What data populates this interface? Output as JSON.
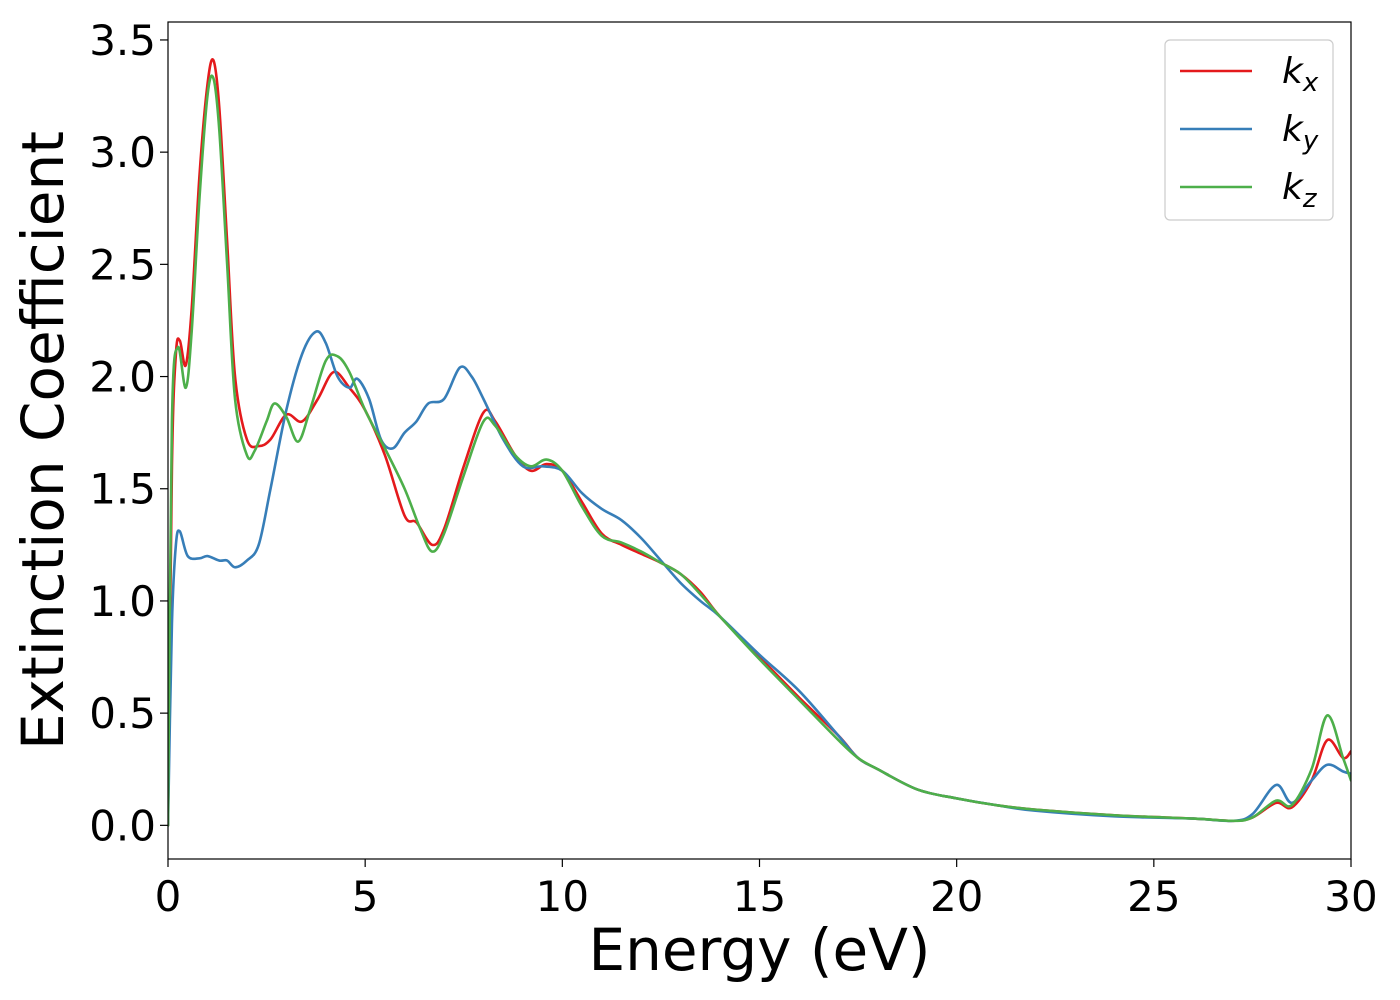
{
  "chart_data": {
    "type": "line",
    "title": "",
    "xlabel": "Energy (eV)",
    "ylabel": "Extinction Coefficient",
    "xlim": [
      0,
      30
    ],
    "ylim": [
      -0.15,
      3.58
    ],
    "xticks": [
      0,
      5,
      10,
      15,
      20,
      25,
      30
    ],
    "yticks": [
      0.0,
      0.5,
      1.0,
      1.5,
      2.0,
      2.5,
      3.0,
      3.5
    ],
    "xtick_labels": [
      "0",
      "5",
      "10",
      "15",
      "20",
      "25",
      "30"
    ],
    "ytick_labels": [
      "0.0",
      "0.5",
      "1.0",
      "1.5",
      "2.0",
      "2.5",
      "3.0",
      "3.5"
    ],
    "grid": false,
    "legend_position": "top-right",
    "series": [
      {
        "name": "k",
        "subscript": "x",
        "color": "#e41a1c",
        "points": [
          [
            0,
            0
          ],
          [
            0.1,
            1.6
          ],
          [
            0.2,
            2.1
          ],
          [
            0.3,
            2.16
          ],
          [
            0.45,
            2.05
          ],
          [
            0.6,
            2.3
          ],
          [
            0.8,
            2.9
          ],
          [
            1.0,
            3.3
          ],
          [
            1.15,
            3.41
          ],
          [
            1.3,
            3.2
          ],
          [
            1.5,
            2.6
          ],
          [
            1.7,
            2.0
          ],
          [
            2.0,
            1.72
          ],
          [
            2.3,
            1.69
          ],
          [
            2.6,
            1.72
          ],
          [
            3.0,
            1.83
          ],
          [
            3.4,
            1.8
          ],
          [
            3.8,
            1.9
          ],
          [
            4.2,
            2.02
          ],
          [
            4.6,
            1.95
          ],
          [
            5.0,
            1.85
          ],
          [
            5.5,
            1.65
          ],
          [
            6.0,
            1.38
          ],
          [
            6.3,
            1.35
          ],
          [
            6.7,
            1.25
          ],
          [
            7.0,
            1.32
          ],
          [
            7.5,
            1.6
          ],
          [
            8.0,
            1.84
          ],
          [
            8.3,
            1.8
          ],
          [
            8.8,
            1.65
          ],
          [
            9.2,
            1.58
          ],
          [
            9.6,
            1.61
          ],
          [
            10.0,
            1.58
          ],
          [
            10.5,
            1.44
          ],
          [
            11.0,
            1.3
          ],
          [
            11.5,
            1.25
          ],
          [
            12.0,
            1.21
          ],
          [
            12.5,
            1.17
          ],
          [
            13.0,
            1.12
          ],
          [
            13.5,
            1.04
          ],
          [
            14.0,
            0.93
          ],
          [
            15.0,
            0.75
          ],
          [
            16.0,
            0.57
          ],
          [
            17.0,
            0.4
          ],
          [
            17.5,
            0.3
          ],
          [
            18.0,
            0.25
          ],
          [
            19.0,
            0.16
          ],
          [
            20.0,
            0.12
          ],
          [
            21.0,
            0.09
          ],
          [
            22.0,
            0.07
          ],
          [
            24.0,
            0.045
          ],
          [
            26.0,
            0.03
          ],
          [
            27.0,
            0.02
          ],
          [
            27.5,
            0.035
          ],
          [
            28.1,
            0.1
          ],
          [
            28.5,
            0.08
          ],
          [
            29.0,
            0.2
          ],
          [
            29.4,
            0.38
          ],
          [
            29.8,
            0.3
          ],
          [
            30.0,
            0.33
          ]
        ]
      },
      {
        "name": "k",
        "subscript": "y",
        "color": "#377eb8",
        "points": [
          [
            0,
            0
          ],
          [
            0.1,
            0.9
          ],
          [
            0.2,
            1.25
          ],
          [
            0.3,
            1.31
          ],
          [
            0.5,
            1.2
          ],
          [
            0.8,
            1.19
          ],
          [
            1.0,
            1.2
          ],
          [
            1.3,
            1.18
          ],
          [
            1.5,
            1.18
          ],
          [
            1.7,
            1.15
          ],
          [
            2.0,
            1.18
          ],
          [
            2.3,
            1.25
          ],
          [
            2.6,
            1.5
          ],
          [
            3.0,
            1.85
          ],
          [
            3.4,
            2.1
          ],
          [
            3.75,
            2.2
          ],
          [
            4.0,
            2.15
          ],
          [
            4.3,
            2.0
          ],
          [
            4.6,
            1.95
          ],
          [
            4.8,
            1.99
          ],
          [
            5.1,
            1.9
          ],
          [
            5.4,
            1.72
          ],
          [
            5.7,
            1.68
          ],
          [
            6.0,
            1.75
          ],
          [
            6.3,
            1.8
          ],
          [
            6.6,
            1.88
          ],
          [
            7.0,
            1.9
          ],
          [
            7.4,
            2.04
          ],
          [
            7.7,
            2.0
          ],
          [
            8.0,
            1.9
          ],
          [
            8.5,
            1.72
          ],
          [
            9.0,
            1.6
          ],
          [
            9.5,
            1.6
          ],
          [
            10.0,
            1.58
          ],
          [
            10.5,
            1.48
          ],
          [
            11.0,
            1.41
          ],
          [
            11.5,
            1.36
          ],
          [
            12.0,
            1.28
          ],
          [
            12.5,
            1.18
          ],
          [
            13.0,
            1.08
          ],
          [
            13.5,
            1.0
          ],
          [
            14.0,
            0.93
          ],
          [
            15.0,
            0.76
          ],
          [
            16.0,
            0.6
          ],
          [
            17.0,
            0.4
          ],
          [
            17.5,
            0.3
          ],
          [
            18.0,
            0.25
          ],
          [
            19.0,
            0.16
          ],
          [
            20.0,
            0.12
          ],
          [
            21.0,
            0.09
          ],
          [
            22.0,
            0.065
          ],
          [
            24.0,
            0.04
          ],
          [
            26.0,
            0.03
          ],
          [
            27.0,
            0.02
          ],
          [
            27.5,
            0.05
          ],
          [
            28.1,
            0.18
          ],
          [
            28.5,
            0.1
          ],
          [
            29.0,
            0.2
          ],
          [
            29.4,
            0.27
          ],
          [
            29.8,
            0.24
          ],
          [
            30.0,
            0.23
          ]
        ]
      },
      {
        "name": "k",
        "subscript": "z",
        "color": "#4daf4a",
        "points": [
          [
            0,
            0
          ],
          [
            0.1,
            1.8
          ],
          [
            0.25,
            2.13
          ],
          [
            0.45,
            1.95
          ],
          [
            0.6,
            2.2
          ],
          [
            0.8,
            2.8
          ],
          [
            1.0,
            3.25
          ],
          [
            1.15,
            3.33
          ],
          [
            1.3,
            3.1
          ],
          [
            1.5,
            2.5
          ],
          [
            1.7,
            1.9
          ],
          [
            2.0,
            1.65
          ],
          [
            2.2,
            1.67
          ],
          [
            2.5,
            1.8
          ],
          [
            2.7,
            1.88
          ],
          [
            3.0,
            1.82
          ],
          [
            3.3,
            1.71
          ],
          [
            3.6,
            1.85
          ],
          [
            4.0,
            2.07
          ],
          [
            4.3,
            2.09
          ],
          [
            4.6,
            2.02
          ],
          [
            5.0,
            1.85
          ],
          [
            5.5,
            1.68
          ],
          [
            6.0,
            1.5
          ],
          [
            6.4,
            1.32
          ],
          [
            6.7,
            1.22
          ],
          [
            7.0,
            1.3
          ],
          [
            7.5,
            1.56
          ],
          [
            8.0,
            1.8
          ],
          [
            8.3,
            1.78
          ],
          [
            8.8,
            1.65
          ],
          [
            9.2,
            1.6
          ],
          [
            9.6,
            1.63
          ],
          [
            10.0,
            1.58
          ],
          [
            10.5,
            1.42
          ],
          [
            11.0,
            1.29
          ],
          [
            11.5,
            1.26
          ],
          [
            12.0,
            1.22
          ],
          [
            12.5,
            1.17
          ],
          [
            13.0,
            1.12
          ],
          [
            13.5,
            1.03
          ],
          [
            14.0,
            0.93
          ],
          [
            15.0,
            0.74
          ],
          [
            16.0,
            0.56
          ],
          [
            17.0,
            0.38
          ],
          [
            17.5,
            0.3
          ],
          [
            18.0,
            0.25
          ],
          [
            19.0,
            0.16
          ],
          [
            20.0,
            0.12
          ],
          [
            21.0,
            0.09
          ],
          [
            22.0,
            0.07
          ],
          [
            24.0,
            0.045
          ],
          [
            26.0,
            0.03
          ],
          [
            27.0,
            0.02
          ],
          [
            27.5,
            0.035
          ],
          [
            28.1,
            0.11
          ],
          [
            28.5,
            0.09
          ],
          [
            29.0,
            0.25
          ],
          [
            29.4,
            0.49
          ],
          [
            29.8,
            0.3
          ],
          [
            30.0,
            0.2
          ]
        ]
      }
    ]
  }
}
